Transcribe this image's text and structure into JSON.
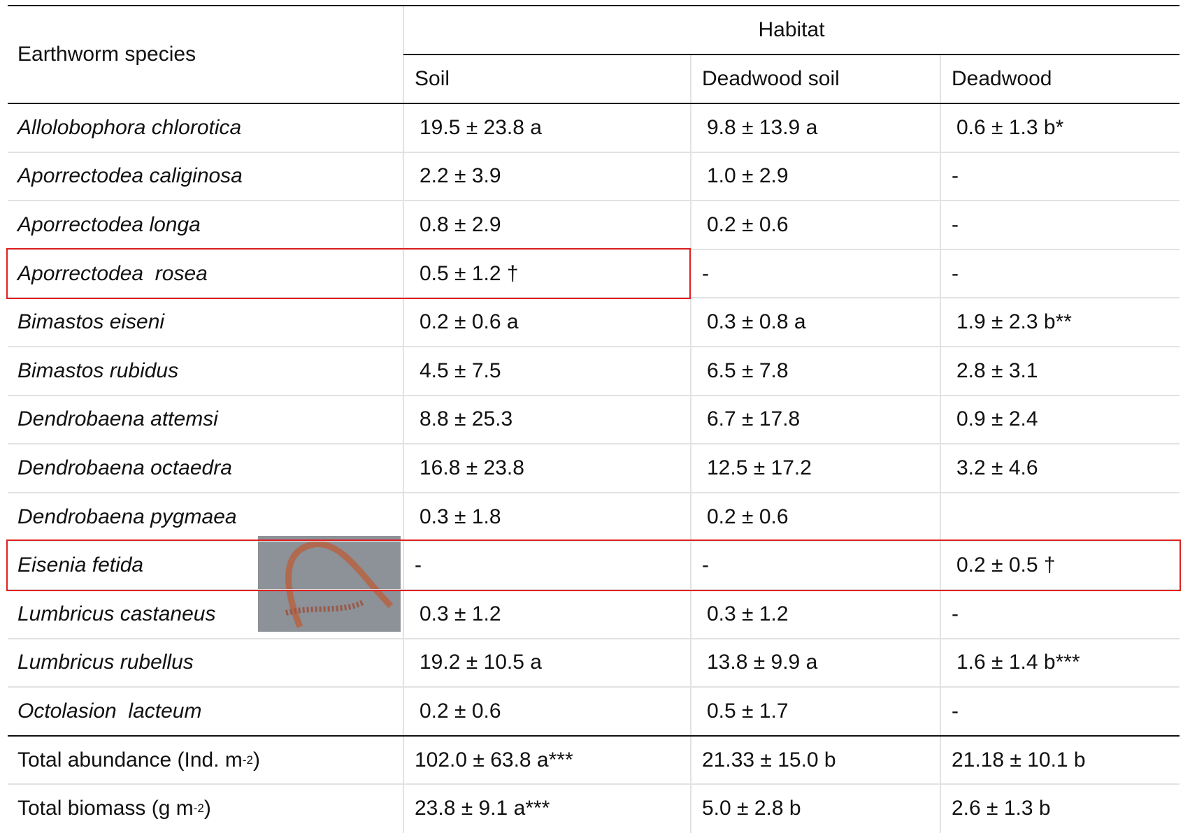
{
  "table": {
    "header": {
      "species": "Earthworm species",
      "group": "Habitat",
      "columns": [
        "Soil",
        "Deadwood soil",
        "Deadwood"
      ]
    },
    "rows": [
      {
        "species": "Allolobophora chlorotica",
        "values": [
          "19.5 ± 23.8 a",
          "9.8 ± 13.9 a",
          "0.6 ± 1.3 b*"
        ]
      },
      {
        "species": "Aporrectodea caliginosa",
        "values": [
          "2.2 ± 3.9",
          "1.0 ± 2.9",
          "-"
        ]
      },
      {
        "species": "Aporrectodea longa",
        "values": [
          "0.8 ± 2.9",
          "0.2 ± 0.6",
          "-"
        ]
      },
      {
        "species": "Aporrectodea  rosea",
        "values": [
          "0.5 ± 1.2 †",
          "-",
          "-"
        ]
      },
      {
        "species": "Bimastos eiseni",
        "values": [
          "0.2 ± 0.6 a",
          "0.3 ± 0.8 a",
          "1.9 ± 2.3 b**"
        ]
      },
      {
        "species": "Bimastos rubidus",
        "values": [
          "4.5 ± 7.5",
          "6.5 ± 7.8",
          "2.8 ± 3.1"
        ]
      },
      {
        "species": "Dendrobaena attemsi",
        "values": [
          "8.8 ± 25.3",
          "6.7 ± 17.8",
          "0.9 ± 2.4"
        ]
      },
      {
        "species": "Dendrobaena octaedra",
        "values": [
          "16.8 ± 23.8",
          "12.5 ± 17.2",
          "3.2 ± 4.6"
        ]
      },
      {
        "species": "Dendrobaena pygmaea",
        "values": [
          "0.3 ± 1.8",
          "0.2 ± 0.6",
          null
        ]
      },
      {
        "species": "Eisenia fetida",
        "values": [
          "-",
          "-",
          "0.2 ± 0.5 †"
        ]
      },
      {
        "species": "Lumbricus castaneus",
        "values": [
          "0.3 ± 1.2",
          "0.3 ± 1.2",
          "-"
        ]
      },
      {
        "species": "Lumbricus rubellus",
        "values": [
          "19.2 ± 10.5 a",
          "13.8 ± 9.9 a",
          "1.6 ± 1.4 b***"
        ]
      },
      {
        "species": "Octolasion  lacteum",
        "values": [
          "0.2 ± 0.6",
          "0.5 ± 1.7",
          "-"
        ]
      }
    ],
    "totals": [
      {
        "label": "Total abundance (Ind. m",
        "sup": "-2",
        "close": ")",
        "values": [
          "102.0 ± 63.8 a***",
          "21.33 ± 15.0 b",
          "21.18 ± 10.1 b"
        ]
      },
      {
        "label": "Total biomass (g m",
        "sup": "-2",
        "close": ")",
        "values": [
          "23.8 ± 9.1 a***",
          "5.0 ± 2.8 b",
          "2.6 ± 1.3 b"
        ]
      }
    ]
  }
}
